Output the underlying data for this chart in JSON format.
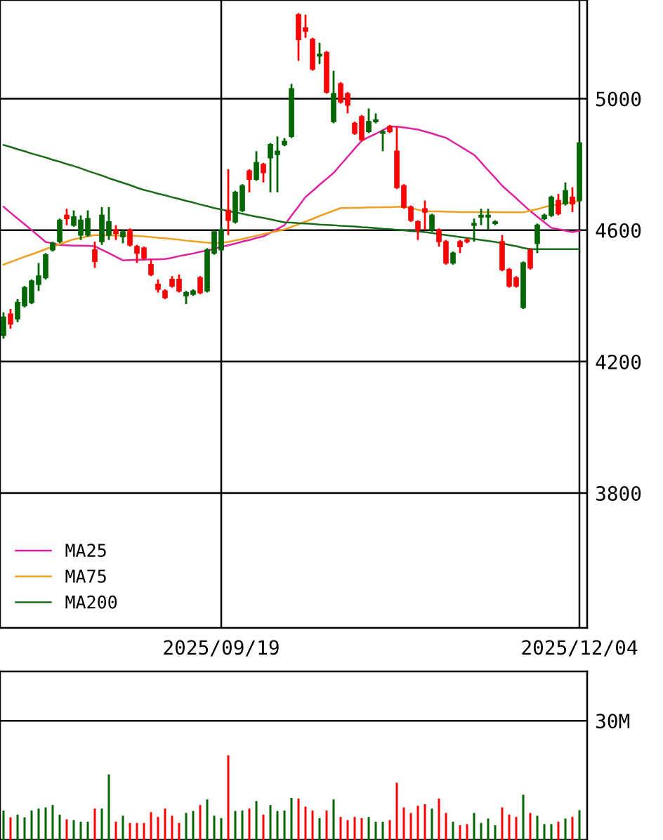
{
  "chart_data": [
    {
      "type": "candlestick",
      "categories": [
        null,
        null,
        null,
        null,
        null,
        null,
        null,
        null,
        null,
        null,
        null,
        null,
        null,
        null,
        null,
        null,
        null,
        null,
        null,
        null,
        null,
        null,
        null,
        null,
        null,
        null,
        null,
        null,
        null,
        null,
        null,
        "2025/09/19",
        null,
        null,
        null,
        null,
        null,
        null,
        null,
        null,
        null,
        null,
        null,
        null,
        null,
        null,
        null,
        null,
        null,
        null,
        null,
        null,
        null,
        null,
        null,
        null,
        null,
        null,
        null,
        null,
        null,
        null,
        null,
        null,
        null,
        null,
        null,
        null,
        null,
        null,
        null,
        null,
        null,
        null,
        null,
        null,
        null,
        null,
        null,
        null,
        null,
        null,
        "2025/12/04"
      ],
      "ohlc": [
        [
          4280,
          4350,
          4270,
          4335
        ],
        [
          4345,
          4360,
          4300,
          4315
        ],
        [
          4330,
          4390,
          4320,
          4380
        ],
        [
          4370,
          4430,
          4365,
          4425
        ],
        [
          4380,
          4450,
          4375,
          4445
        ],
        [
          4435,
          4500,
          4415,
          4460
        ],
        [
          4455,
          4530,
          4450,
          4525
        ],
        [
          4540,
          4565,
          4535,
          4560
        ],
        [
          4565,
          4635,
          4560,
          4630
        ],
        [
          4645,
          4665,
          4615,
          4635
        ],
        [
          4615,
          4660,
          4610,
          4640
        ],
        [
          4585,
          4645,
          4570,
          4630
        ],
        [
          4585,
          4660,
          4580,
          4635
        ],
        [
          4540,
          4565,
          4485,
          4505
        ],
        [
          4565,
          4670,
          4555,
          4645
        ],
        [
          4585,
          4670,
          4570,
          4625
        ],
        [
          4600,
          4615,
          4570,
          4590
        ],
        [
          4580,
          4600,
          4560,
          4595
        ],
        [
          4600,
          4605,
          4550,
          4555
        ],
        [
          4550,
          4555,
          4500,
          4530
        ],
        [
          4545,
          4550,
          4510,
          4515
        ],
        [
          4495,
          4510,
          4460,
          4465
        ],
        [
          4435,
          4450,
          4410,
          4420
        ],
        [
          4415,
          4420,
          4390,
          4395
        ],
        [
          4450,
          4460,
          4425,
          4430
        ],
        [
          4450,
          4465,
          4410,
          4415
        ],
        [
          4400,
          4415,
          4375,
          4410
        ],
        [
          4405,
          4420,
          4400,
          4415
        ],
        [
          4455,
          4460,
          4405,
          4410
        ],
        [
          4415,
          4545,
          4410,
          4540
        ],
        [
          4530,
          4600,
          4525,
          4595
        ],
        [
          4540,
          4610,
          4535,
          4600
        ],
        [
          4660,
          4785,
          4585,
          4630
        ],
        [
          4625,
          4720,
          4620,
          4715
        ],
        [
          4660,
          4740,
          4655,
          4735
        ],
        [
          4780,
          4785,
          4715,
          4755
        ],
        [
          4755,
          4840,
          4750,
          4805
        ],
        [
          4800,
          4805,
          4745,
          4775
        ],
        [
          4820,
          4865,
          4715,
          4860
        ],
        [
          4830,
          4885,
          4715,
          4840
        ],
        [
          4860,
          4880,
          4855,
          4870
        ],
        [
          4885,
          5045,
          4880,
          5030
        ],
        [
          5255,
          5260,
          5115,
          5180
        ],
        [
          5215,
          5255,
          5185,
          5205
        ],
        [
          5180,
          5185,
          5085,
          5090
        ],
        [
          5130,
          5170,
          5105,
          5135
        ],
        [
          5140,
          5145,
          5015,
          5020
        ],
        [
          4930,
          5085,
          4925,
          5015
        ],
        [
          5045,
          5050,
          4985,
          4990
        ],
        [
          5015,
          5020,
          4955,
          4980
        ],
        [
          4925,
          4930,
          4890,
          4895
        ],
        [
          4945,
          4950,
          4870,
          4875
        ],
        [
          4900,
          4970,
          4895,
          4930
        ],
        [
          4930,
          4955,
          4925,
          4935
        ],
        [
          4895,
          4905,
          4840,
          4900
        ],
        [
          4915,
          4920,
          4895,
          4900
        ],
        [
          4840,
          4915,
          4725,
          4730
        ],
        [
          4735,
          4740,
          4665,
          4670
        ],
        [
          4670,
          4675,
          4625,
          4630
        ],
        [
          4625,
          4630,
          4570,
          4600
        ],
        [
          4665,
          4690,
          4600,
          4655
        ],
        [
          4600,
          4650,
          4595,
          4645
        ],
        [
          4600,
          4605,
          4550,
          4565
        ],
        [
          4565,
          4570,
          4495,
          4500
        ],
        [
          4500,
          4535,
          4495,
          4530
        ],
        [
          4565,
          4570,
          4530,
          4550
        ],
        [
          4570,
          4575,
          4560,
          4565
        ],
        [
          4615,
          4635,
          4565,
          4620
        ],
        [
          4640,
          4665,
          4615,
          4645
        ],
        [
          4640,
          4665,
          4600,
          4645
        ],
        [
          4620,
          4630,
          4615,
          4625
        ],
        [
          4565,
          4585,
          4475,
          4480
        ],
        [
          4480,
          4485,
          4425,
          4430
        ],
        [
          4455,
          4460,
          4425,
          4430
        ],
        [
          4365,
          4505,
          4360,
          4500
        ],
        [
          4540,
          4545,
          4480,
          4485
        ],
        [
          4560,
          4620,
          4530,
          4615
        ],
        [
          4635,
          4650,
          4630,
          4645
        ],
        [
          4645,
          4705,
          4640,
          4700
        ],
        [
          4690,
          4710,
          4645,
          4650
        ],
        [
          4680,
          4745,
          4675,
          4720
        ],
        [
          4700,
          4730,
          4655,
          4680
        ],
        [
          4690,
          4870,
          4685,
          4865
        ]
      ],
      "colors": [
        "#006600",
        "#ff0000",
        "#006600",
        "#006600",
        "#006600",
        "#006600",
        "#006600",
        "#006600",
        "#006600",
        "#ff0000",
        "#006600",
        "#006600",
        "#006600",
        "#ff0000",
        "#006600",
        "#006600",
        "#ff0000",
        "#006600",
        "#ff0000",
        "#ff0000",
        "#ff0000",
        "#ff0000",
        "#ff0000",
        "#ff0000",
        "#ff0000",
        "#ff0000",
        "#006600",
        "#006600",
        "#ff0000",
        "#006600",
        "#006600",
        "#006600",
        "#ff0000",
        "#006600",
        "#006600",
        "#ff0000",
        "#006600",
        "#ff0000",
        "#006600",
        "#006600",
        "#006600",
        "#006600",
        "#ff0000",
        "#ff0000",
        "#ff0000",
        "#006600",
        "#ff0000",
        "#006600",
        "#ff0000",
        "#ff0000",
        "#ff0000",
        "#ff0000",
        "#006600",
        "#006600",
        "#006600",
        "#ff0000",
        "#ff0000",
        "#ff0000",
        "#ff0000",
        "#ff0000",
        "#ff0000",
        "#006600",
        "#ff0000",
        "#ff0000",
        "#006600",
        "#ff0000",
        "#ff0000",
        "#006600",
        "#006600",
        "#006600",
        "#006600",
        "#ff0000",
        "#ff0000",
        "#ff0000",
        "#006600",
        "#ff0000",
        "#006600",
        "#006600",
        "#006600",
        "#ff0000",
        "#006600",
        "#ff0000",
        "#006600"
      ],
      "series": [
        {
          "name": "MA25",
          "type": "line",
          "color": "#e020a0",
          "values": [
            4671,
            4653,
            4635,
            4618,
            4600,
            4582,
            4564,
            4560,
            4555,
            4554,
            4553,
            4553,
            4552,
            4551,
            4540,
            4530,
            4519,
            4508,
            4509,
            4510,
            4510,
            4511,
            4511,
            4512,
            4516,
            4521,
            4525,
            4529,
            4534,
            4538,
            4543,
            4549,
            4554,
            4559,
            4565,
            4570,
            4576,
            4581,
            4592,
            4604,
            4615,
            4644,
            4672,
            4701,
            4719,
            4738,
            4756,
            4774,
            4799,
            4823,
            4848,
            4872,
            4883,
            4893,
            4904,
            4915,
            4915,
            4912,
            4909,
            4906,
            4900,
            4894,
            4887,
            4881,
            4868,
            4855,
            4842,
            4829,
            4806,
            4782,
            4759,
            4735,
            4716,
            4697,
            4677,
            4658,
            4641,
            4624,
            4607,
            4603,
            4598,
            4594,
            4598
          ]
        },
        {
          "name": "MA75",
          "type": "line",
          "color": "#f0a020",
          "values": [
            4495,
            4503,
            4511,
            4519,
            4526,
            4534,
            4542,
            4550,
            4557,
            4565,
            4572,
            4576,
            4581,
            4585,
            4585,
            4584,
            4584,
            4583,
            4583,
            4582,
            4581,
            4579,
            4577,
            4575,
            4573,
            4571,
            4568,
            4566,
            4564,
            4562,
            4560,
            4562,
            4564,
            4569,
            4573,
            4578,
            4583,
            4588,
            4593,
            4597,
            4602,
            4610,
            4618,
            4626,
            4634,
            4643,
            4651,
            4659,
            4667,
            4667,
            4668,
            4668,
            4669,
            4669,
            4670,
            4670,
            4671,
            4671,
            4667,
            4662,
            4658,
            4657,
            4657,
            4656,
            4656,
            4655,
            4655,
            4655,
            4655,
            4655,
            4655,
            4654,
            4654,
            4654,
            4654,
            4659,
            4664,
            4670,
            4675,
            4678,
            4682,
            4685,
            4688
          ]
        },
        {
          "name": "MA200",
          "type": "line",
          "color": "#1a6b1a",
          "values": [
            4859,
            4853,
            4846,
            4840,
            4833,
            4827,
            4821,
            4814,
            4808,
            4801,
            4795,
            4788,
            4780,
            4773,
            4766,
            4758,
            4751,
            4744,
            4737,
            4729,
            4722,
            4717,
            4711,
            4706,
            4700,
            4695,
            4689,
            4684,
            4678,
            4673,
            4667,
            4663,
            4658,
            4654,
            4650,
            4645,
            4641,
            4637,
            4633,
            4628,
            4624,
            4623,
            4621,
            4620,
            4619,
            4617,
            4616,
            4615,
            4613,
            4612,
            4611,
            4609,
            4608,
            4606,
            4604,
            4603,
            4601,
            4599,
            4597,
            4596,
            4594,
            4591,
            4588,
            4585,
            4582,
            4579,
            4576,
            4573,
            4570,
            4567,
            4564,
            4560,
            4555,
            4551,
            4546,
            4542,
            4542,
            4542,
            4542,
            4542,
            4542,
            4542,
            4542
          ]
        }
      ],
      "ylim": [
        3390,
        5300
      ],
      "yticks": [
        3800,
        4200,
        4600,
        5000
      ],
      "grid": true,
      "legend": "bottom left"
    },
    {
      "type": "bar",
      "categories": [
        null,
        null,
        null,
        null,
        null,
        null,
        null,
        null,
        null,
        null,
        null,
        null,
        null,
        null,
        null,
        null,
        null,
        null,
        null,
        null,
        null,
        null,
        null,
        null,
        null,
        null,
        null,
        null,
        null,
        null,
        null,
        "2025/09/19",
        null,
        null,
        null,
        null,
        null,
        null,
        null,
        null,
        null,
        null,
        null,
        null,
        null,
        null,
        null,
        null,
        null,
        null,
        null,
        null,
        null,
        null,
        null,
        null,
        null,
        null,
        null,
        null,
        null,
        null,
        null,
        null,
        null,
        null,
        null,
        null,
        null,
        null,
        null,
        null,
        null,
        null,
        null,
        null,
        null,
        null,
        null,
        null,
        null,
        null,
        "2025/12/04"
      ],
      "values": [
        7.4,
        5.7,
        6.4,
        5.7,
        7.4,
        7.9,
        8.2,
        8.8,
        6.4,
        5.2,
        5.0,
        4.6,
        4.6,
        7.9,
        7.9,
        16.5,
        4.6,
        6.1,
        4.3,
        4.3,
        4.3,
        7.0,
        5.8,
        7.9,
        6.1,
        4.3,
        6.8,
        7.3,
        8.8,
        10.2,
        6.1,
        5.5,
        21.3,
        7.3,
        7.4,
        7.9,
        9.8,
        6.4,
        8.8,
        7.3,
        7.4,
        10.6,
        10.4,
        8.4,
        7.4,
        5.5,
        7.4,
        10.2,
        5.8,
        5.0,
        5.8,
        5.5,
        5.8,
        4.6,
        4.6,
        5.0,
        14.4,
        8.2,
        6.8,
        8.6,
        9.0,
        7.9,
        10.4,
        6.8,
        4.6,
        3.7,
        4.0,
        6.8,
        4.3,
        5.4,
        3.7,
        8.2,
        6.4,
        5.8,
        11.4,
        6.8,
        6.1,
        4.0,
        4.0,
        4.6,
        5.4,
        5.8,
        7.5
      ],
      "colors": [
        "#006600",
        "#ff0000",
        "#006600",
        "#006600",
        "#006600",
        "#006600",
        "#006600",
        "#006600",
        "#006600",
        "#ff0000",
        "#006600",
        "#006600",
        "#006600",
        "#ff0000",
        "#006600",
        "#006600",
        "#ff0000",
        "#006600",
        "#ff0000",
        "#ff0000",
        "#ff0000",
        "#ff0000",
        "#ff0000",
        "#ff0000",
        "#ff0000",
        "#ff0000",
        "#006600",
        "#006600",
        "#ff0000",
        "#006600",
        "#006600",
        "#006600",
        "#ff0000",
        "#006600",
        "#006600",
        "#ff0000",
        "#006600",
        "#ff0000",
        "#006600",
        "#006600",
        "#006600",
        "#006600",
        "#ff0000",
        "#ff0000",
        "#ff0000",
        "#006600",
        "#ff0000",
        "#006600",
        "#ff0000",
        "#ff0000",
        "#ff0000",
        "#ff0000",
        "#006600",
        "#006600",
        "#006600",
        "#ff0000",
        "#ff0000",
        "#ff0000",
        "#ff0000",
        "#ff0000",
        "#ff0000",
        "#006600",
        "#ff0000",
        "#ff0000",
        "#006600",
        "#ff0000",
        "#ff0000",
        "#006600",
        "#006600",
        "#006600",
        "#006600",
        "#ff0000",
        "#ff0000",
        "#ff0000",
        "#006600",
        "#ff0000",
        "#006600",
        "#006600",
        "#006600",
        "#ff0000",
        "#006600",
        "#ff0000",
        "#006600"
      ],
      "ylim": [
        0,
        42.4
      ],
      "yticks": [
        {
          "value": 0,
          "label": null
        },
        {
          "value": 30,
          "label": "30M"
        }
      ],
      "grid": "y",
      "tick_labels": "y"
    }
  ]
}
